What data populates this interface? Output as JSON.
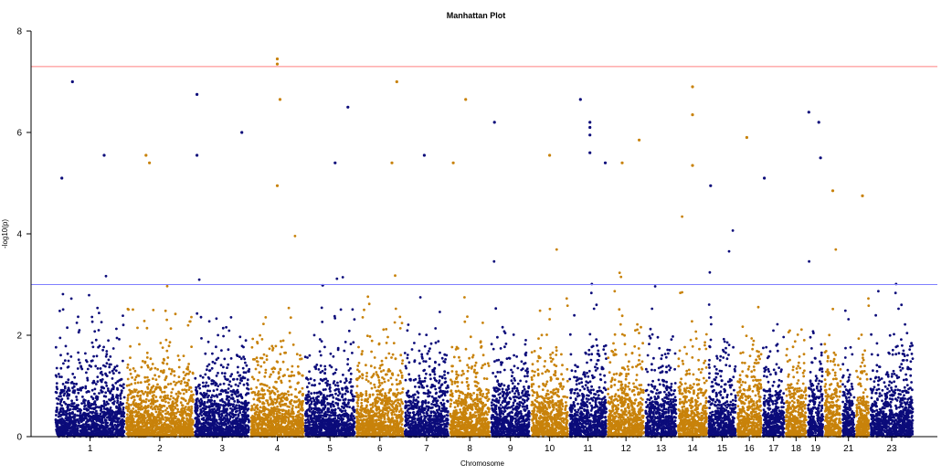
{
  "chart_data": {
    "type": "scatter",
    "title": "Manhattan Plot",
    "xlabel": "Chromosome",
    "ylabel": "-log10(p)",
    "ylim": [
      0,
      8
    ],
    "yticks": [
      "0",
      "2",
      "4",
      "6",
      "8"
    ],
    "colors": {
      "odd": "#0b0b7a",
      "even": "#c8820a",
      "genome_wide_line": "#ff8080",
      "suggestive_line": "#8080ff"
    },
    "thresholds": {
      "genome_wide": 7.3,
      "suggestive": 3.0
    },
    "chromosomes": [
      {
        "chr": "1",
        "label": "1",
        "size": 249
      },
      {
        "chr": "2",
        "label": "2",
        "size": 243
      },
      {
        "chr": "3",
        "label": "3",
        "size": 198
      },
      {
        "chr": "4",
        "label": "4",
        "size": 191
      },
      {
        "chr": "5",
        "label": "5",
        "size": 181
      },
      {
        "chr": "6",
        "label": "6",
        "size": 171
      },
      {
        "chr": "7",
        "label": "7",
        "size": 159
      },
      {
        "chr": "8",
        "label": "8",
        "size": 146
      },
      {
        "chr": "9",
        "label": "9",
        "size": 141
      },
      {
        "chr": "10",
        "label": "10",
        "size": 136
      },
      {
        "chr": "11",
        "label": "11",
        "size": 135
      },
      {
        "chr": "12",
        "label": "12",
        "size": 133
      },
      {
        "chr": "13",
        "label": "13",
        "size": 115
      },
      {
        "chr": "14",
        "label": "14",
        "size": 107
      },
      {
        "chr": "15",
        "label": "15",
        "size": 102
      },
      {
        "chr": "16",
        "label": "16",
        "size": 90
      },
      {
        "chr": "17",
        "label": "17",
        "size": 81
      },
      {
        "chr": "18",
        "label": "18",
        "size": 78
      },
      {
        "chr": "19",
        "label": "19",
        "size": 59
      },
      {
        "chr": "20",
        "label": "",
        "size": 63
      },
      {
        "chr": "21",
        "label": "21",
        "size": 48
      },
      {
        "chr": "22",
        "label": "",
        "size": 51
      },
      {
        "chr": "23",
        "label": "23",
        "size": 155
      }
    ],
    "top_hits": [
      {
        "chr": "1",
        "pos": 0.25,
        "y": 7.0
      },
      {
        "chr": "1",
        "pos": 0.1,
        "y": 5.1
      },
      {
        "chr": "1",
        "pos": 0.7,
        "y": 5.55
      },
      {
        "chr": "2",
        "pos": 0.3,
        "y": 5.55
      },
      {
        "chr": "2",
        "pos": 0.35,
        "y": 5.4
      },
      {
        "chr": "3",
        "pos": 0.05,
        "y": 6.75
      },
      {
        "chr": "3",
        "pos": 0.05,
        "y": 5.55
      },
      {
        "chr": "3",
        "pos": 0.85,
        "y": 6.0
      },
      {
        "chr": "4",
        "pos": 0.5,
        "y": 7.45
      },
      {
        "chr": "4",
        "pos": 0.5,
        "y": 7.35
      },
      {
        "chr": "4",
        "pos": 0.55,
        "y": 6.65
      },
      {
        "chr": "4",
        "pos": 0.5,
        "y": 4.95
      },
      {
        "chr": "5",
        "pos": 0.85,
        "y": 6.5
      },
      {
        "chr": "5",
        "pos": 0.6,
        "y": 5.4
      },
      {
        "chr": "6",
        "pos": 0.85,
        "y": 7.0
      },
      {
        "chr": "6",
        "pos": 0.75,
        "y": 5.4
      },
      {
        "chr": "7",
        "pos": 0.45,
        "y": 5.55
      },
      {
        "chr": "8",
        "pos": 0.4,
        "y": 6.65
      },
      {
        "chr": "8",
        "pos": 0.1,
        "y": 5.4
      },
      {
        "chr": "9",
        "pos": 0.1,
        "y": 6.2
      },
      {
        "chr": "10",
        "pos": 0.5,
        "y": 5.55
      },
      {
        "chr": "11",
        "pos": 0.3,
        "y": 6.65
      },
      {
        "chr": "11",
        "pos": 0.55,
        "y": 6.2
      },
      {
        "chr": "11",
        "pos": 0.55,
        "y": 6.1
      },
      {
        "chr": "11",
        "pos": 0.55,
        "y": 5.95
      },
      {
        "chr": "11",
        "pos": 0.55,
        "y": 5.6
      },
      {
        "chr": "11",
        "pos": 0.95,
        "y": 5.4
      },
      {
        "chr": "12",
        "pos": 0.4,
        "y": 5.4
      },
      {
        "chr": "12",
        "pos": 0.85,
        "y": 5.85
      },
      {
        "chr": "14",
        "pos": 0.5,
        "y": 6.9
      },
      {
        "chr": "14",
        "pos": 0.5,
        "y": 6.35
      },
      {
        "chr": "14",
        "pos": 0.5,
        "y": 5.35
      },
      {
        "chr": "15",
        "pos": 0.1,
        "y": 4.95
      },
      {
        "chr": "16",
        "pos": 0.4,
        "y": 5.9
      },
      {
        "chr": "17",
        "pos": 0.1,
        "y": 5.1
      },
      {
        "chr": "19",
        "pos": 0.1,
        "y": 6.4
      },
      {
        "chr": "19",
        "pos": 0.7,
        "y": 6.2
      },
      {
        "chr": "19",
        "pos": 0.8,
        "y": 5.5
      },
      {
        "chr": "20",
        "pos": 0.5,
        "y": 4.85
      },
      {
        "chr": "22",
        "pos": 0.5,
        "y": 4.75
      }
    ]
  }
}
